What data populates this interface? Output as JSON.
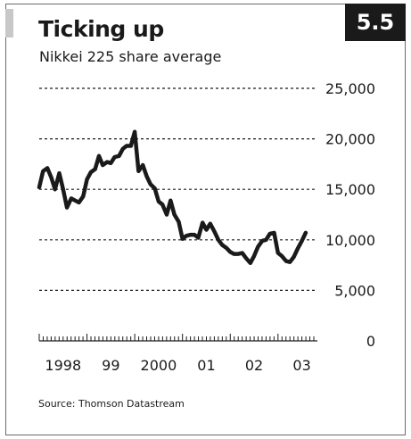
{
  "badge": "5.5",
  "chart_data": {
    "type": "line",
    "title": "Ticking up",
    "subtitle": "Nikkei 225 share average",
    "source": "Source: Thomson Datastream",
    "ylim": [
      0,
      25000
    ],
    "yticks": [
      0,
      5000,
      10000,
      15000,
      20000,
      25000
    ],
    "ytick_labels": [
      "0",
      "5,000",
      "10,000",
      "15,000",
      "20,000",
      "25,000"
    ],
    "xlim": [
      1998.0,
      2003.75
    ],
    "xtick_labels": [
      {
        "x": 1998.5,
        "label": "1998"
      },
      {
        "x": 1999.5,
        "label": "99"
      },
      {
        "x": 2000.5,
        "label": "2000"
      },
      {
        "x": 2001.5,
        "label": "01"
      },
      {
        "x": 2002.5,
        "label": "02"
      },
      {
        "x": 2003.5,
        "label": "03"
      }
    ],
    "grid": true,
    "line_color": "#1a1a1a",
    "series": [
      {
        "x": [
          1998.0,
          1998.08,
          1998.17,
          1998.25,
          1998.33,
          1998.42,
          1998.5,
          1998.58,
          1998.67,
          1998.75,
          1998.83,
          1998.92,
          1999.0,
          1999.08,
          1999.17,
          1999.25,
          1999.33,
          1999.42,
          1999.5,
          1999.58,
          1999.67,
          1999.75,
          1999.83,
          1999.92,
          2000.0,
          2000.08,
          2000.17,
          2000.25,
          2000.33,
          2000.42,
          2000.5,
          2000.58,
          2000.67,
          2000.75,
          2000.83,
          2000.92,
          2001.0,
          2001.08,
          2001.17,
          2001.25,
          2001.33,
          2001.42,
          2001.5,
          2001.58,
          2001.67,
          2001.75,
          2001.83,
          2001.92,
          2002.0,
          2002.08,
          2002.17,
          2002.25,
          2002.33,
          2002.42,
          2002.5,
          2002.58,
          2002.67,
          2002.75,
          2002.83,
          2002.92,
          2003.0,
          2003.08,
          2003.17,
          2003.25,
          2003.33,
          2003.42,
          2003.5,
          2003.58
        ],
        "y": [
          15200,
          16800,
          17100,
          16200,
          15000,
          16600,
          15000,
          13200,
          14100,
          13900,
          13700,
          14300,
          16000,
          16700,
          17000,
          18300,
          17400,
          17700,
          17600,
          18200,
          18300,
          19000,
          19300,
          19300,
          20700,
          16800,
          17400,
          16300,
          15500,
          15100,
          13800,
          13500,
          12500,
          13900,
          12500,
          11800,
          10100,
          10400,
          10500,
          10500,
          10200,
          11700,
          11000,
          11600,
          10800,
          10000,
          9500,
          9200,
          8800,
          8600,
          8600,
          8700,
          8200,
          7700,
          8400,
          9300,
          9900,
          10000,
          10600,
          10700,
          8700,
          8400,
          7900,
          7800,
          8300,
          9200,
          9900,
          10700
        ]
      }
    ]
  }
}
